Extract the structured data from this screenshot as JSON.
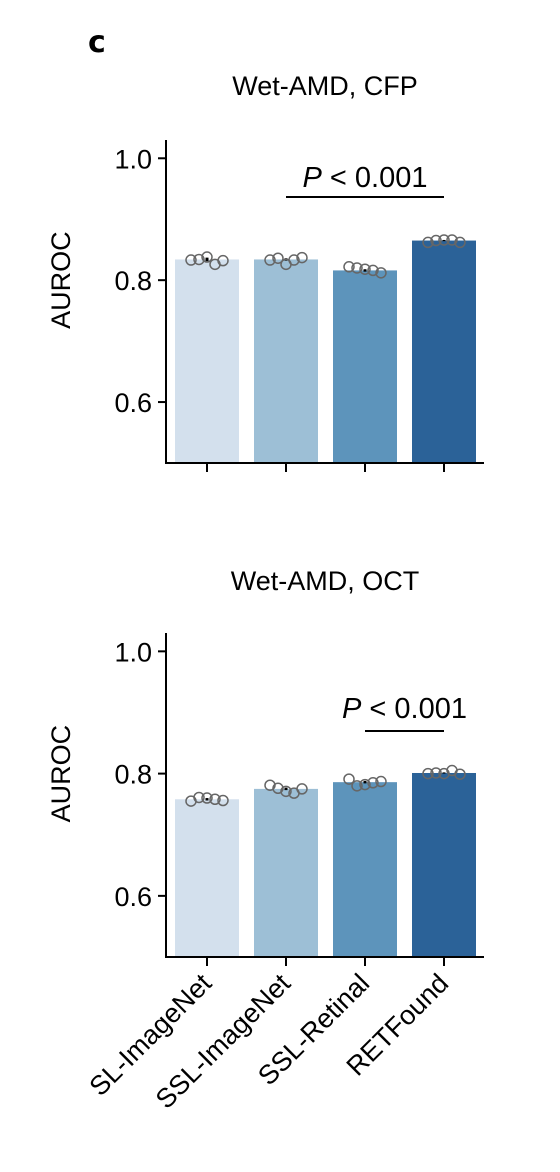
{
  "panel_letter": "c",
  "colors": [
    "#d3e0ed",
    "#9dbfd6",
    "#5d94bb",
    "#2b6298"
  ],
  "chart_data": [
    {
      "type": "bar",
      "title": "Wet-AMD, CFP",
      "ylabel": "AUROC",
      "xlabel": "",
      "categories": [
        "SL-ImageNet",
        "SSL-ImageNet",
        "SSL-Retinal",
        "RETFound"
      ],
      "values": [
        0.834,
        0.834,
        0.816,
        0.865
      ],
      "errors": [
        0.003,
        0.002,
        0.002,
        0.001
      ],
      "points": [
        [
          0.833,
          0.834,
          0.838,
          0.826,
          0.832
        ],
        [
          0.833,
          0.836,
          0.826,
          0.833,
          0.837
        ],
        [
          0.822,
          0.82,
          0.818,
          0.816,
          0.812
        ],
        [
          0.862,
          0.865,
          0.866,
          0.866,
          0.862
        ]
      ],
      "ylim": [
        0.5,
        1.03
      ],
      "yticks": [
        0.6,
        0.8,
        1.0
      ],
      "ytick_labels": [
        "0.6",
        "0.8",
        "1.0"
      ],
      "annotation": {
        "label": "P < 0.001",
        "p_italic": "P",
        "rest": " < 0.001",
        "from": 1,
        "to": 3
      },
      "show_xtick_labels": false
    },
    {
      "type": "bar",
      "title": "Wet-AMD, OCT",
      "ylabel": "AUROC",
      "xlabel": "",
      "categories": [
        "SL-ImageNet",
        "SSL-ImageNet",
        "SSL-Retinal",
        "RETFound"
      ],
      "values": [
        0.758,
        0.775,
        0.786,
        0.801
      ],
      "errors": [
        0.002,
        0.002,
        0.002,
        0.001
      ],
      "points": [
        [
          0.755,
          0.761,
          0.76,
          0.758,
          0.756
        ],
        [
          0.781,
          0.776,
          0.771,
          0.768,
          0.775
        ],
        [
          0.791,
          0.78,
          0.782,
          0.785,
          0.787
        ],
        [
          0.8,
          0.801,
          0.8,
          0.805,
          0.799
        ]
      ],
      "ylim": [
        0.5,
        1.03
      ],
      "yticks": [
        0.6,
        0.8,
        1.0
      ],
      "ytick_labels": [
        "0.6",
        "0.8",
        "1.0"
      ],
      "annotation": {
        "label": "P < 0.001",
        "p_italic": "P",
        "rest": " < 0.001",
        "from": 2,
        "to": 3
      },
      "show_xtick_labels": true
    }
  ]
}
